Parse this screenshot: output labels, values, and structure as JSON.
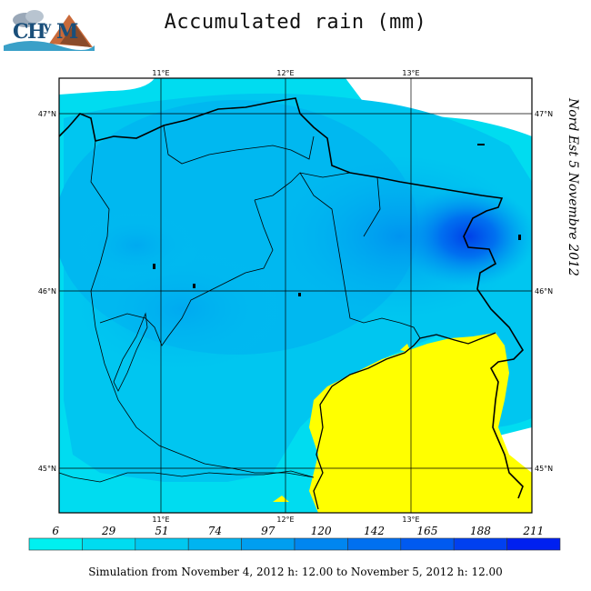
{
  "title": "Accumulated rain (mm)",
  "side_label": "Nord Est 5 Novembre 2012",
  "footer": "Simulation from November 4, 2012 h: 12.00 to November 5, 2012 h: 12.00",
  "logo": {
    "text": "CHyM"
  },
  "map": {
    "lon_labels": [
      "11°E",
      "12°E",
      "13°E"
    ],
    "lat_labels": [
      "47°N",
      "46°N",
      "45°N"
    ],
    "colors": {
      "sea": "#ffff00",
      "border": "#000000",
      "grid": "#000000"
    }
  },
  "colorbar": {
    "labels": [
      "6",
      "29",
      "51",
      "74",
      "97",
      "120",
      "142",
      "165",
      "188",
      "211"
    ],
    "colors": [
      "#00f0f0",
      "#00dcf0",
      "#00c8f0",
      "#00b4f0",
      "#009ef0",
      "#0086f0",
      "#0070f0",
      "#005af0",
      "#0040f0",
      "#0020f0"
    ]
  }
}
